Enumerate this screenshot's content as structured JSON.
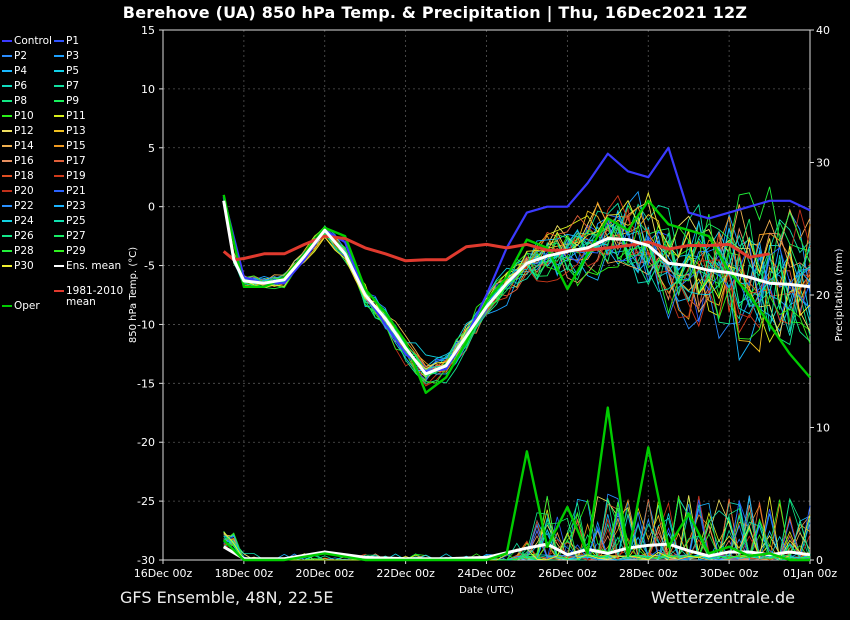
{
  "title": "Berehove  (UA)  850 hPa Temp. & Precipitation | Thu, 16Dec2021 12Z",
  "footer": {
    "left": "GFS Ensemble, 48N, 22.5E",
    "right": "Wetterzentrale.de"
  },
  "colors": {
    "background": "#000000",
    "climate_mean": "#e03a2e",
    "ens_mean": "#ffffff",
    "oper": "#00cc00",
    "control": "#3a3aff"
  },
  "legend": {
    "members": [
      {
        "name": "Control",
        "color": "#3a3aff"
      },
      {
        "name": "P1",
        "color": "#2f54ff"
      },
      {
        "name": "P2",
        "color": "#2a8cff"
      },
      {
        "name": "P3",
        "color": "#1ca0ff"
      },
      {
        "name": "P4",
        "color": "#19b8ff"
      },
      {
        "name": "P5",
        "color": "#12d0e8"
      },
      {
        "name": "P6",
        "color": "#10dcc0"
      },
      {
        "name": "P7",
        "color": "#10e0a0"
      },
      {
        "name": "P8",
        "color": "#12e884"
      },
      {
        "name": "P9",
        "color": "#18f05c"
      },
      {
        "name": "P10",
        "color": "#2af018"
      },
      {
        "name": "P11",
        "color": "#d8f01a"
      },
      {
        "name": "P12",
        "color": "#f0e060"
      },
      {
        "name": "P13",
        "color": "#f0c020"
      },
      {
        "name": "P14",
        "color": "#f0b050"
      },
      {
        "name": "P15",
        "color": "#f09a20"
      },
      {
        "name": "P16",
        "color": "#e89060"
      },
      {
        "name": "P17",
        "color": "#e0603a"
      },
      {
        "name": "P18",
        "color": "#e04e22"
      },
      {
        "name": "P19",
        "color": "#d03a1a"
      },
      {
        "name": "P20",
        "color": "#c0301a"
      },
      {
        "name": "P21",
        "color": "#2a64ff"
      },
      {
        "name": "P22",
        "color": "#2a90ff"
      },
      {
        "name": "P23",
        "color": "#1ab4ff"
      },
      {
        "name": "P24",
        "color": "#12d2e2"
      },
      {
        "name": "P25",
        "color": "#10e0b0"
      },
      {
        "name": "P26",
        "color": "#12e88a"
      },
      {
        "name": "P27",
        "color": "#16ee66"
      },
      {
        "name": "P28",
        "color": "#22f03a"
      },
      {
        "name": "P29",
        "color": "#30f020"
      },
      {
        "name": "P30",
        "color": "#f0f030"
      },
      {
        "name": "Ens. mean",
        "color": "#ffffff"
      }
    ],
    "climate_label_1": "1981-2010",
    "climate_label_2": "mean",
    "oper_label": "Oper"
  },
  "chart_data": {
    "type": "line",
    "title": "Berehove  (UA)  850 hPa Temp. & Precipitation | Thu, 16Dec2021 12Z",
    "xlabel": "Date (UTC)",
    "ylabel": "850 hPa Temp. (°C)",
    "y2label": "Precipitation (mm)",
    "x_ticks": [
      "16Dec 00z",
      "18Dec 00z",
      "20Dec 00z",
      "22Dec 00z",
      "24Dec 00z",
      "26Dec 00z",
      "28Dec 00z",
      "30Dec 00z",
      "01Jan 00z"
    ],
    "x_range_days": [
      0,
      16
    ],
    "ylim": [
      -30,
      15
    ],
    "y_ticks": [
      15,
      10,
      5,
      0,
      -5,
      -10,
      -15,
      -20,
      -25,
      -30
    ],
    "y2lim": [
      0,
      40
    ],
    "y2_ticks": [
      40,
      30,
      20,
      10,
      0
    ],
    "grid": true,
    "legend_position": "left outside",
    "series": [
      {
        "name": "Ens. mean",
        "x_days": [
          1.5,
          1.75,
          2,
          2.5,
          3,
          3.5,
          4,
          4.5,
          5,
          5.5,
          6,
          6.5,
          7,
          7.5,
          8,
          8.5,
          9,
          9.5,
          10,
          10.5,
          11,
          11.5,
          12,
          12.5,
          13,
          13.5,
          14,
          14.5,
          15,
          15.5,
          16
        ],
        "values": [
          0.5,
          -4.5,
          -6.3,
          -6.5,
          -6.2,
          -4.2,
          -2.0,
          -4.0,
          -7.5,
          -9.5,
          -12.0,
          -14.2,
          -13.5,
          -11.0,
          -8.5,
          -6.5,
          -4.8,
          -4.2,
          -3.8,
          -3.5,
          -2.7,
          -2.8,
          -3.3,
          -4.8,
          -5.0,
          -5.4,
          -5.6,
          -6.0,
          -6.5,
          -6.6,
          -6.8
        ]
      },
      {
        "name": "1981-2010 mean",
        "x_days": [
          1.5,
          1.75,
          2,
          2.5,
          3,
          3.5,
          4,
          4.5,
          5,
          5.5,
          6,
          6.5,
          7,
          7.5,
          8,
          8.5,
          9,
          9.5,
          10,
          10.5,
          11,
          11.5,
          12,
          12.5,
          13,
          13.5,
          14,
          14.5,
          15
        ],
        "values": [
          -3.8,
          -4.5,
          -4.4,
          -4.0,
          -4.0,
          -3.2,
          -2.5,
          -2.7,
          -3.5,
          -4.0,
          -4.6,
          -4.5,
          -4.5,
          -3.4,
          -3.2,
          -3.5,
          -3.2,
          -3.7,
          -3.7,
          -3.7,
          -3.5,
          -3.3,
          -3.0,
          -3.6,
          -3.3,
          -3.3,
          -3.2,
          -4.3,
          -4.0
        ]
      },
      {
        "name": "Oper",
        "x_days": [
          1.5,
          1.75,
          2,
          2.5,
          3,
          3.5,
          4,
          4.5,
          5,
          5.5,
          6,
          6.5,
          7,
          7.5,
          8,
          8.5,
          9,
          9.5,
          10,
          10.5,
          11,
          11.5,
          12,
          12.5,
          13,
          13.5,
          14,
          14.5,
          15,
          15.5,
          16
        ],
        "values": [
          1.0,
          -3.0,
          -6.8,
          -6.8,
          -6.0,
          -4.0,
          -1.8,
          -2.5,
          -7.0,
          -9.0,
          -11.5,
          -15.8,
          -14.5,
          -11.5,
          -8.0,
          -6.0,
          -2.8,
          -3.5,
          -7.0,
          -4.0,
          -1.0,
          -2.0,
          0.5,
          -1.5,
          -2.0,
          -2.5,
          -5.5,
          -7.5,
          -10.0,
          -12.5,
          -14.5
        ]
      },
      {
        "name": "Control",
        "x_days": [
          1.5,
          2,
          2.5,
          3,
          3.5,
          4,
          4.5,
          5,
          5.5,
          6,
          6.5,
          7,
          7.5,
          8,
          8.5,
          9,
          9.5,
          10,
          10.5,
          11,
          11.5,
          12,
          12.5,
          13,
          13.5,
          14,
          14.5,
          15,
          15.5,
          16
        ],
        "values": [
          0.8,
          -6.0,
          -6.5,
          -6.5,
          -4.5,
          -2.0,
          -3.0,
          -7.5,
          -10.0,
          -12.5,
          -14.0,
          -13.8,
          -11.0,
          -7.5,
          -3.5,
          -0.5,
          0.0,
          0.0,
          2.0,
          4.5,
          3.0,
          2.5,
          5.0,
          -0.5,
          -1.0,
          -0.5,
          0.0,
          0.5,
          0.5,
          -0.3
        ]
      }
    ],
    "precip_series": [
      {
        "name": "Ens. mean",
        "x_days": [
          1.5,
          2,
          3,
          4,
          5,
          6,
          7,
          8,
          9,
          9.5,
          10,
          10.5,
          11,
          11.5,
          12,
          12.5,
          13,
          13.5,
          14,
          14.5,
          15,
          15.5,
          16
        ],
        "values": [
          1.0,
          0.1,
          0.1,
          0.6,
          0.2,
          0.1,
          0.1,
          0.2,
          0.9,
          1.2,
          0.4,
          0.8,
          0.5,
          0.9,
          1.1,
          1.2,
          0.7,
          0.3,
          0.6,
          0.6,
          0.4,
          0.6,
          0.4
        ]
      },
      {
        "name": "Oper",
        "x_days": [
          1.5,
          2,
          3,
          4,
          5,
          6,
          7,
          8,
          8.5,
          9,
          9.5,
          10,
          10.5,
          11,
          11.5,
          12,
          12.5,
          13,
          13.5,
          14,
          14.5,
          15,
          15.5,
          16
        ],
        "values": [
          1.5,
          0.0,
          0.0,
          0.5,
          0.0,
          0.0,
          0.0,
          0.0,
          0.5,
          8.2,
          1.0,
          4.0,
          0.5,
          11.5,
          0.3,
          8.5,
          1.0,
          3.5,
          0.5,
          1.0,
          0.3,
          0.5,
          0.0,
          0.0
        ]
      }
    ]
  }
}
